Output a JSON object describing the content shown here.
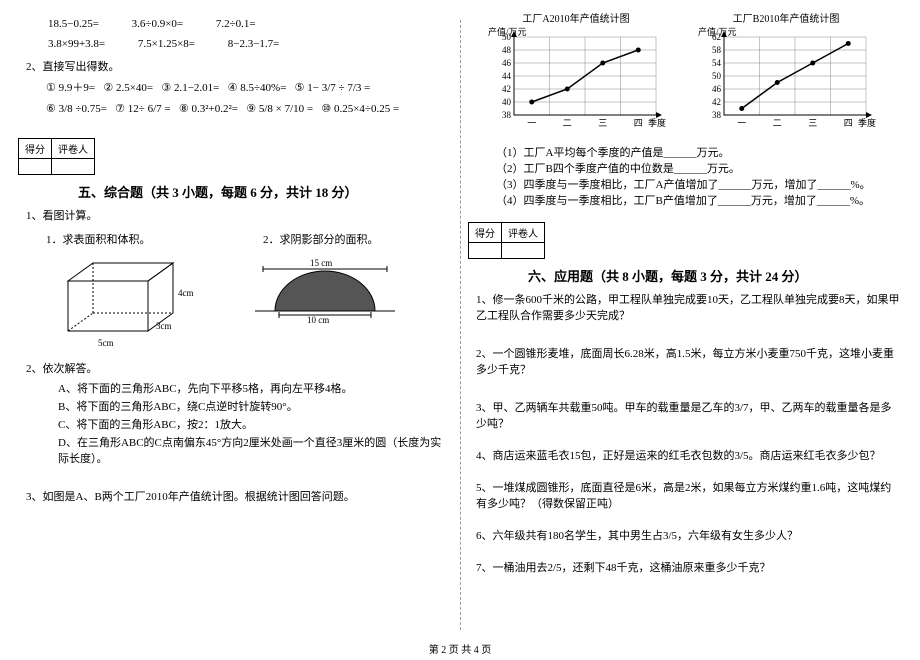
{
  "leftCol": {
    "calcRow1": [
      "18.5−0.25=",
      "3.6÷0.9×0=",
      "7.2÷0.1="
    ],
    "calcRow2": [
      "3.8×99+3.8=",
      "7.5×1.25×8=",
      "8−2.3−1.7="
    ],
    "directHeader": "2、直接写出得数。",
    "directItems": [
      "① 9.9＋9=",
      "② 2.5×40=",
      "③ 2.1−2.01=",
      "④ 8.5÷40%=",
      "⑤ 1− 3/7 ÷ 7/3 =",
      "⑥ 3/8 ÷0.75=",
      "⑦ 12÷ 6/7 =",
      "⑧ 0.3²+0.2²=",
      "⑨ 5/8 × 7/10 =",
      "⑩ 0.25×4÷0.25 ="
    ],
    "section5": "五、综合题（共 3 小题，每题 6 分，共计 18 分）",
    "q1": "1、看图计算。",
    "q1a": "1．求表面积和体积。",
    "q1b": "2．求阴影部分的面积。",
    "box": {
      "w": "5cm",
      "d": "3cm",
      "h": "4cm",
      "stroke": "#000"
    },
    "arch": {
      "top": "15 cm",
      "bottom": "10 cm",
      "stroke": "#000",
      "fill": "#555"
    },
    "q2": "2、依次解答。",
    "q2a": "A、将下面的三角形ABC，先向下平移5格，再向左平移4格。",
    "q2b": "B、将下面的三角形ABC，绕C点逆时针旋转90°。",
    "q2c": "C、将下面的三角形ABC，按2：1放大。",
    "q2d": "D、在三角形ABC的C点南偏东45°方向2厘米处画一个直径3厘米的圆（长度为实际长度）。",
    "q3": "3、如图是A、B两个工厂2010年产值统计图。根据统计图回答问题。"
  },
  "rightCol": {
    "chartA": {
      "title": "工厂A2010年产值统计图",
      "ylabel": "产值/万元",
      "xlabel": "季度",
      "yticks": [
        38,
        40,
        42,
        44,
        46,
        48,
        50
      ],
      "xticks": [
        "一",
        "二",
        "三",
        "四"
      ],
      "values": [
        40,
        42,
        46,
        48
      ],
      "line": "#000",
      "grid": "#888"
    },
    "chartB": {
      "title": "工厂B2010年产值统计图",
      "ylabel": "产值/万元",
      "xlabel": "季度",
      "yticks": [
        38,
        42,
        46,
        50,
        54,
        58,
        62
      ],
      "xticks": [
        "一",
        "二",
        "三",
        "四"
      ],
      "values": [
        40,
        48,
        54,
        60
      ],
      "line": "#000",
      "grid": "#888"
    },
    "chartQs": [
      "（1）工厂A平均每个季度的产值是______万元。",
      "（2）工厂B四个季度产值的中位数是______万元。",
      "（3）四季度与一季度相比，工厂A产值增加了______万元，增加了______%。",
      "（4）四季度与一季度相比，工厂B产值增加了______万元，增加了______%。"
    ],
    "section6": "六、应用题（共 8 小题，每题 3 分，共计 24 分）",
    "apps": [
      "1、修一条600千米的公路，甲工程队单独完成要10天，乙工程队单独完成要8天，如果甲乙工程队合作需要多少天完成？",
      "2、一个圆锥形麦堆，底面周长6.28米，高1.5米，每立方米小麦重750千克，这堆小麦重多少千克？",
      "3、甲、乙两辆车共载重50吨。甲车的载重量是乙车的3/7，甲、乙两车的载重量各是多少吨？",
      "4、商店运来蓝毛衣15包，正好是运来的红毛衣包数的3/5。商店运来红毛衣多少包？",
      "5、一堆煤成圆锥形，底面直径是6米，高是2米，如果每立方米煤约重1.6吨，这吨煤约有多少吨？（得数保留正吨）",
      "6、六年级共有180名学生，其中男生占3/5，六年级有女生多少人？",
      "7、一桶油用去2/5，还剩下48千克，这桶油原来重多少千克？"
    ]
  },
  "scoreHeaders": [
    "得分",
    "评卷人"
  ],
  "footer": "第 2 页 共 4 页"
}
